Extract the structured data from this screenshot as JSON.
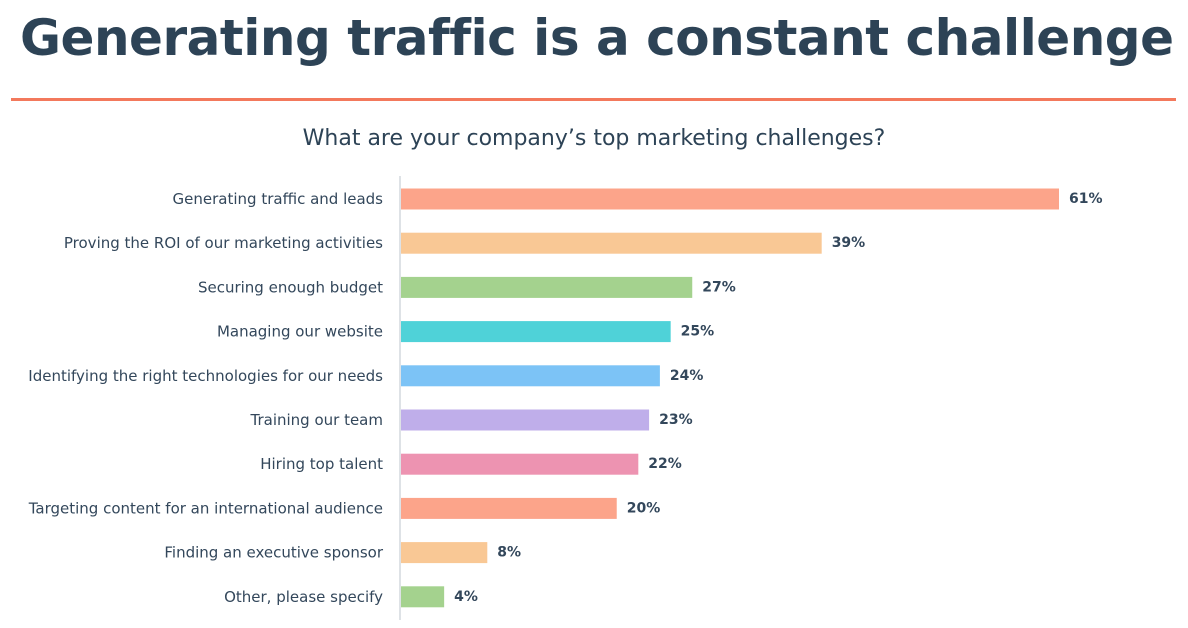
{
  "headline": "Generating traffic is a constant challenge",
  "colors": {
    "headline": "#2d4356",
    "rule": "#f3795c",
    "axis": "#d3d9de",
    "label": "#33475b",
    "value": "#33475b"
  },
  "chart_data": {
    "type": "bar",
    "orientation": "horizontal",
    "title": "What are your company’s top marketing challenges?",
    "xlabel": "",
    "ylabel": "",
    "xlim": [
      0,
      61
    ],
    "value_suffix": "%",
    "grid": false,
    "legend": "none",
    "categories": [
      "Generating traffic and leads",
      "Proving the ROI of our marketing activities",
      "Securing enough budget",
      "Managing our website",
      "Identifying the right technologies for our needs",
      "Training our team",
      "Hiring top talent",
      "Targeting content for an international audience",
      "Finding an executive sponsor",
      "Other, please specify"
    ],
    "values": [
      61,
      39,
      27,
      25,
      24,
      23,
      22,
      20,
      8,
      4
    ],
    "bar_colors": [
      "#fca48a",
      "#f9c895",
      "#a4d28e",
      "#4fd2d8",
      "#7cc3f6",
      "#bfaeea",
      "#ed93b1",
      "#fca48a",
      "#f9c895",
      "#a4d28e"
    ]
  }
}
